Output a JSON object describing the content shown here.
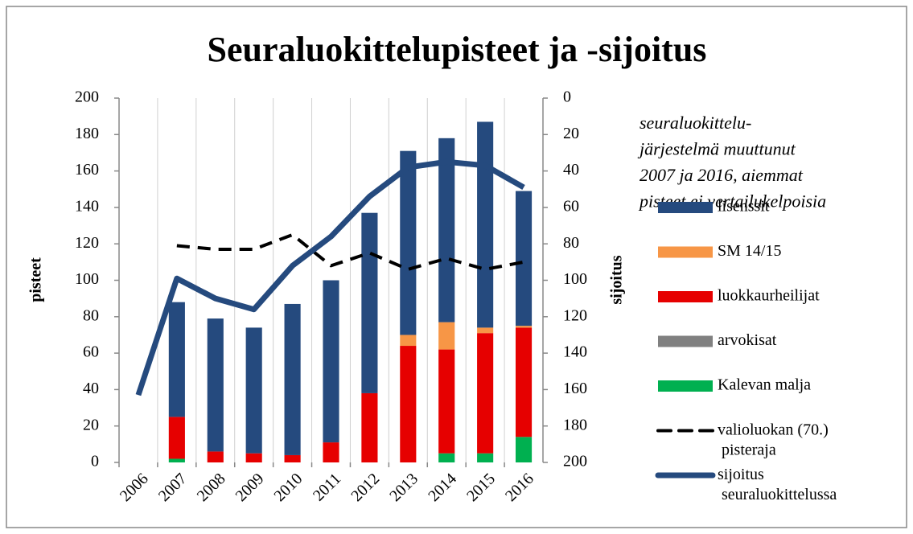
{
  "chart_data": {
    "type": "bar",
    "title": "Seuraluokittelupisteet ja -sijoitus",
    "ylabel": "pisteet",
    "y2label": "sijoitus",
    "annotation": [
      "seuraluokittelu-",
      "järjestelmä muuttunut",
      "2007 ja 2016, aiemmat",
      "pisteet ei vertailukelpoisia"
    ],
    "categories": [
      "2006",
      "2007",
      "2008",
      "2009",
      "2010",
      "2011",
      "2012",
      "2013",
      "2014",
      "2015",
      "2016"
    ],
    "stacked": true,
    "ylim": [
      0,
      200
    ],
    "yticks": [
      0,
      20,
      40,
      60,
      80,
      100,
      120,
      140,
      160,
      180,
      200
    ],
    "y2lim": [
      0,
      200
    ],
    "y2_reversed": true,
    "y2ticks": [
      0,
      20,
      40,
      60,
      80,
      100,
      120,
      140,
      160,
      180,
      200
    ],
    "series": [
      {
        "name": "Kalevan malja",
        "type": "bar",
        "color": "#00b050",
        "values": [
          0,
          2,
          0,
          0,
          0,
          0,
          0,
          0,
          5,
          5,
          14
        ]
      },
      {
        "name": "arvokisat",
        "type": "bar",
        "color": "#808080",
        "values": [
          0,
          0,
          0,
          0,
          0,
          0,
          0,
          0,
          0,
          0,
          0
        ]
      },
      {
        "name": "luokkaurheilijat",
        "type": "bar",
        "color": "#e60000",
        "values": [
          0,
          23,
          6,
          5,
          4,
          11,
          38,
          64,
          57,
          66,
          60
        ]
      },
      {
        "name": "SM 14/15",
        "type": "bar",
        "color": "#f79646",
        "values": [
          0,
          0,
          0,
          0,
          0,
          0,
          0,
          6,
          15,
          3,
          1
        ]
      },
      {
        "name": "lisenssit",
        "type": "bar",
        "color": "#254a7e",
        "values": [
          0,
          63,
          73,
          69,
          83,
          89,
          99,
          101,
          101,
          113,
          74
        ]
      },
      {
        "name": "valioluokan (70.) pisteraja",
        "type": "line",
        "axis": "y2",
        "dashed": true,
        "color": "#000000",
        "values": [
          null,
          81,
          83,
          83,
          75,
          92,
          85,
          94,
          88,
          94,
          90
        ]
      },
      {
        "name": "sijoitus seuraluokittelussa",
        "type": "line",
        "axis": "y2",
        "dashed": false,
        "color": "#254a7e",
        "values": [
          163,
          99,
          110,
          116,
          92,
          76,
          54,
          38,
          35,
          37,
          49
        ]
      }
    ]
  }
}
